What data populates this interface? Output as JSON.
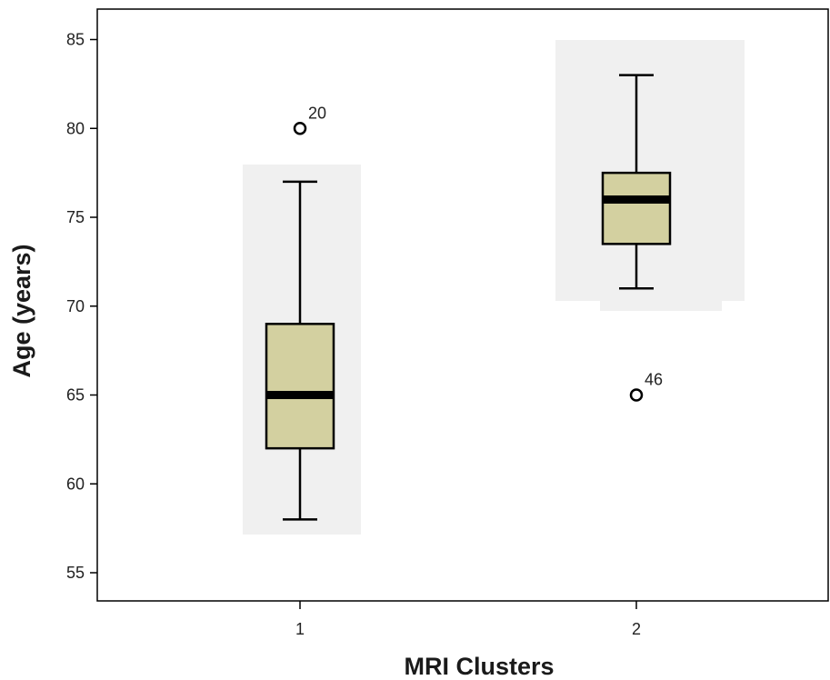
{
  "chart_data": {
    "type": "boxplot",
    "xlabel": "MRI Clusters",
    "ylabel": "Age (years)",
    "categories": [
      "1",
      "2"
    ],
    "ylim": [
      53,
      87
    ],
    "yticks": [
      55,
      60,
      65,
      70,
      75,
      80,
      85
    ],
    "grid": false,
    "boxes": [
      {
        "category": "1",
        "whisker_low": 58,
        "q1": 62,
        "median": 65,
        "q3": 69,
        "whisker_high": 77,
        "outliers": [
          {
            "value": 80,
            "label": "20"
          }
        ]
      },
      {
        "category": "2",
        "whisker_low": 71,
        "q1": 73.5,
        "median": 76,
        "q3": 77.5,
        "whisker_high": 83,
        "outliers": [
          {
            "value": 65,
            "label": "46"
          }
        ]
      }
    ],
    "colors": {
      "box_fill": "#d3d0a0",
      "background_band": "#f0f0f0",
      "stroke": "#000000"
    }
  }
}
